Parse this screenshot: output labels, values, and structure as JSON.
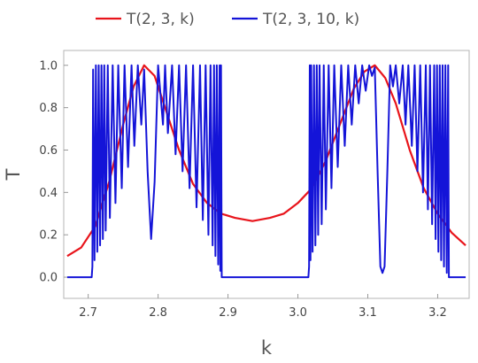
{
  "chart_data": {
    "type": "line",
    "xlabel": "k",
    "ylabel": "T",
    "xlim": [
      2.665,
      3.245
    ],
    "ylim": [
      -0.1,
      1.07
    ],
    "x_ticks": [
      "2.7",
      "2.8",
      "2.9",
      "3.0",
      "3.1",
      "3.2"
    ],
    "y_ticks": [
      "0.0",
      "0.2",
      "0.4",
      "0.6",
      "0.8",
      "1.0"
    ],
    "grid": false,
    "legend_position": "top",
    "series": [
      {
        "name": "T(2, 3, k)",
        "color": "#e8141b",
        "x": [
          2.67,
          2.69,
          2.71,
          2.73,
          2.75,
          2.765,
          2.78,
          2.795,
          2.81,
          2.83,
          2.85,
          2.87,
          2.89,
          2.91,
          2.935,
          2.96,
          2.98,
          3.0,
          3.02,
          3.04,
          3.06,
          3.08,
          3.095,
          3.11,
          3.125,
          3.14,
          3.16,
          3.18,
          3.2,
          3.22,
          3.24
        ],
        "values": [
          0.1,
          0.14,
          0.24,
          0.45,
          0.72,
          0.9,
          1.0,
          0.95,
          0.8,
          0.6,
          0.44,
          0.35,
          0.3,
          0.28,
          0.265,
          0.28,
          0.3,
          0.35,
          0.42,
          0.55,
          0.72,
          0.89,
          0.97,
          1.0,
          0.94,
          0.82,
          0.6,
          0.42,
          0.3,
          0.21,
          0.15
        ]
      },
      {
        "name": "T(2, 3, 10, k)",
        "color": "#1414d8",
        "x": [
          2.67,
          2.705,
          2.706,
          2.707,
          2.709,
          2.711,
          2.713,
          2.715,
          2.717,
          2.719,
          2.721,
          2.723,
          2.725,
          2.728,
          2.731,
          2.735,
          2.739,
          2.743,
          2.748,
          2.752,
          2.757,
          2.762,
          2.766,
          2.771,
          2.776,
          2.78,
          2.785,
          2.79,
          2.795,
          2.8,
          2.807,
          2.81,
          2.814,
          2.82,
          2.825,
          2.83,
          2.835,
          2.84,
          2.845,
          2.85,
          2.855,
          2.86,
          2.864,
          2.868,
          2.872,
          2.875,
          2.878,
          2.88,
          2.882,
          2.884,
          2.886,
          2.888,
          2.889,
          2.89,
          2.891,
          2.9,
          2.95,
          3.0,
          3.015,
          3.016,
          3.017,
          3.018,
          3.019,
          3.021,
          3.023,
          3.025,
          3.027,
          3.029,
          3.031,
          3.034,
          3.037,
          3.04,
          3.044,
          3.048,
          3.052,
          3.057,
          3.062,
          3.067,
          3.072,
          3.077,
          3.082,
          3.087,
          3.092,
          3.097,
          3.102,
          3.106,
          3.11,
          3.114,
          3.118,
          3.121,
          3.124,
          3.128,
          3.132,
          3.136,
          3.14,
          3.145,
          3.15,
          3.154,
          3.158,
          3.163,
          3.167,
          3.171,
          3.175,
          3.179,
          3.183,
          3.186,
          3.189,
          3.192,
          3.195,
          3.197,
          3.199,
          3.201,
          3.203,
          3.205,
          3.207,
          3.209,
          3.211,
          3.213,
          3.215,
          3.216,
          3.218,
          3.22,
          3.24
        ],
        "values": [
          0.0,
          0.0,
          0.05,
          0.98,
          0.08,
          1.0,
          0.12,
          1.0,
          0.15,
          1.0,
          0.18,
          1.0,
          0.22,
          1.0,
          0.28,
          1.0,
          0.35,
          1.0,
          0.42,
          1.0,
          0.52,
          1.0,
          0.62,
          1.0,
          0.72,
          0.98,
          0.5,
          0.18,
          0.45,
          1.0,
          0.72,
          1.0,
          0.68,
          1.0,
          0.58,
          1.0,
          0.5,
          1.0,
          0.42,
          1.0,
          0.33,
          1.0,
          0.27,
          1.0,
          0.2,
          1.0,
          0.15,
          1.0,
          0.1,
          1.0,
          0.06,
          1.0,
          0.03,
          1.0,
          0.0,
          0.0,
          0.0,
          0.0,
          0.0,
          0.05,
          1.0,
          0.08,
          1.0,
          0.12,
          1.0,
          0.15,
          1.0,
          0.2,
          1.0,
          0.25,
          1.0,
          0.32,
          1.0,
          0.42,
          1.0,
          0.52,
          1.0,
          0.62,
          1.0,
          0.72,
          1.0,
          0.82,
          1.0,
          0.88,
          1.0,
          0.95,
          0.99,
          0.5,
          0.05,
          0.02,
          0.05,
          0.5,
          1.0,
          0.9,
          1.0,
          0.82,
          1.0,
          0.72,
          1.0,
          0.62,
          1.0,
          0.5,
          1.0,
          0.4,
          1.0,
          0.32,
          1.0,
          0.25,
          1.0,
          0.18,
          1.0,
          0.12,
          1.0,
          0.08,
          1.0,
          0.05,
          1.0,
          0.02,
          1.0,
          0.0,
          0.0,
          0.0,
          0.0
        ]
      }
    ]
  }
}
